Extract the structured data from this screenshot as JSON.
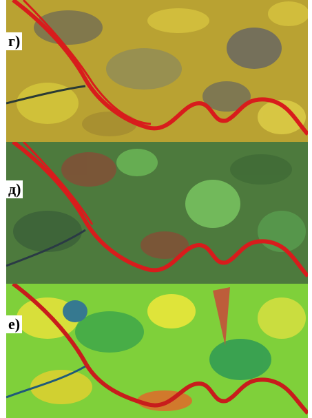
{
  "panels": [
    {
      "label": "г)"
    },
    {
      "label": "д)"
    },
    {
      "label": "е)"
    }
  ]
}
